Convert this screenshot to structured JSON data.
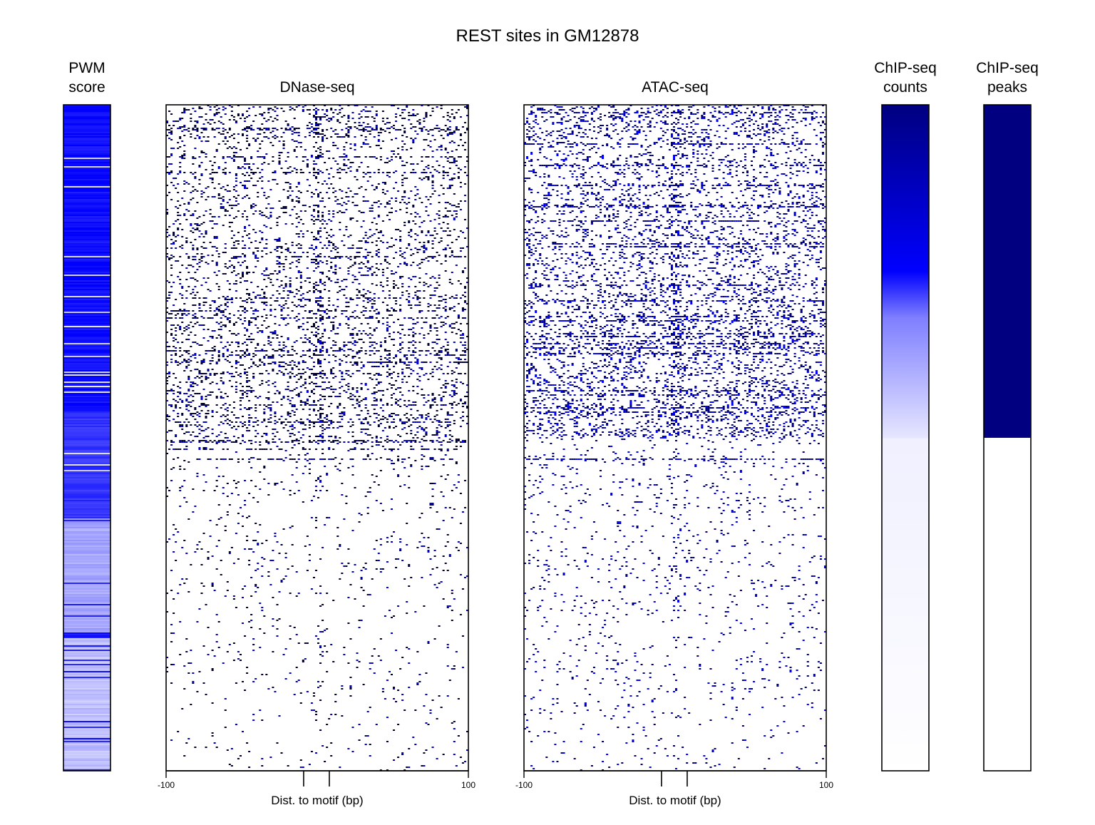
{
  "title": "REST sites in GM12878",
  "chart_data": [
    {
      "type": "heatmap",
      "panel": "pwm",
      "title_lines": [
        "PWM",
        "score"
      ],
      "color": "#0000ff",
      "value_profile": [
        {
          "from": 0.0,
          "to": 0.46,
          "value": 0.95
        },
        {
          "from": 0.46,
          "to": 0.62,
          "value": 0.8
        },
        {
          "from": 0.62,
          "to": 0.8,
          "value": 0.35
        },
        {
          "from": 0.8,
          "to": 1.0,
          "value": 0.25
        }
      ]
    },
    {
      "type": "heatmap",
      "panel": "dnase",
      "title": "DNase-seq",
      "xlabel": "Dist. to motif (bp)",
      "xlim": [
        -100,
        100
      ],
      "tick_labels": [
        "-100",
        "100"
      ],
      "motif_marks": [
        -9,
        8
      ],
      "color_strong": "#000033",
      "color_weak": "#0000cc"
    },
    {
      "type": "heatmap",
      "panel": "atac",
      "title": "ATAC-seq",
      "xlabel": "Dist. to motif (bp)",
      "xlim": [
        -100,
        100
      ],
      "tick_labels": [
        "-100",
        "100"
      ],
      "motif_marks": [
        -9,
        8
      ],
      "color_strong": "#00007f",
      "color_weak": "#0000ff"
    },
    {
      "type": "heatmap",
      "panel": "chip_counts",
      "title_lines": [
        "ChIP-seq",
        "counts"
      ],
      "gradient": [
        {
          "pos": 0.0,
          "color": "#000080"
        },
        {
          "pos": 0.25,
          "color": "#0000ff"
        },
        {
          "pos": 0.32,
          "color": "#7f7fff"
        },
        {
          "pos": 0.5,
          "color": "#e6e6ff"
        },
        {
          "pos": 0.501,
          "color": "#f0f0ff"
        },
        {
          "pos": 0.9,
          "color": "#fbfbff"
        },
        {
          "pos": 1.0,
          "color": "#ffffff"
        }
      ]
    },
    {
      "type": "heatmap",
      "panel": "chip_peaks",
      "title_lines": [
        "ChIP-seq",
        "peaks"
      ],
      "peak_fraction": 0.5,
      "peak_color": "#000080",
      "no_peak_color": "#ffffff"
    }
  ]
}
